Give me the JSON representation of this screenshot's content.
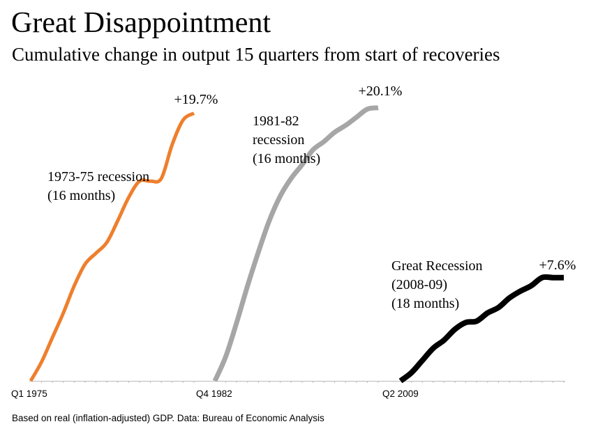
{
  "chart_data": {
    "type": "line",
    "title": "Great Disappointment",
    "subtitle": "Cumulative change in output 15 quarters from start of recoveries",
    "xlabel": "",
    "ylabel": "",
    "source": "Based on real (inflation-adjusted) GDP. Data: Bureau of Economic Analysis",
    "x": [
      0,
      1,
      2,
      3,
      4,
      5,
      6,
      7,
      8,
      9,
      10,
      11,
      12,
      13,
      14,
      15
    ],
    "ylim": [
      0,
      20.5
    ],
    "grid": false,
    "legend": "none",
    "series": [
      {
        "name": "1973-75 recession (16 months)",
        "label_lines": [
          "1973-75 recession",
          "(16 months)"
        ],
        "start_label": "Q1 1975",
        "end_label": "+19.7%",
        "color": "#ee7f2d",
        "values": [
          0,
          1.4,
          3.2,
          5.0,
          7.0,
          8.6,
          9.4,
          10.2,
          11.8,
          13.5,
          14.7,
          14.7,
          14.9,
          17.4,
          19.2,
          19.7
        ]
      },
      {
        "name": "1981-82 recession (16 months)",
        "label_lines": [
          "1981-82",
          "recession",
          "(16 months)"
        ],
        "start_label": "Q4 1982",
        "end_label": "+20.1%",
        "color": "#a6a6a6",
        "values": [
          0,
          1.8,
          4.3,
          7.0,
          9.5,
          11.8,
          13.6,
          14.9,
          15.9,
          17.0,
          17.6,
          18.3,
          18.8,
          19.4,
          20.0,
          20.1
        ]
      },
      {
        "name": "Great Recession (2008-09) (18 months)",
        "label_lines": [
          "Great Recession",
          "(2008-09)",
          "(18 months)"
        ],
        "start_label": "Q2 2009",
        "end_label": "+7.6%",
        "color": "#000000",
        "values": [
          0,
          0.6,
          1.5,
          2.4,
          3.0,
          3.8,
          4.3,
          4.4,
          5.0,
          5.4,
          6.1,
          6.6,
          7.0,
          7.6,
          7.6,
          7.6
        ]
      }
    ]
  }
}
